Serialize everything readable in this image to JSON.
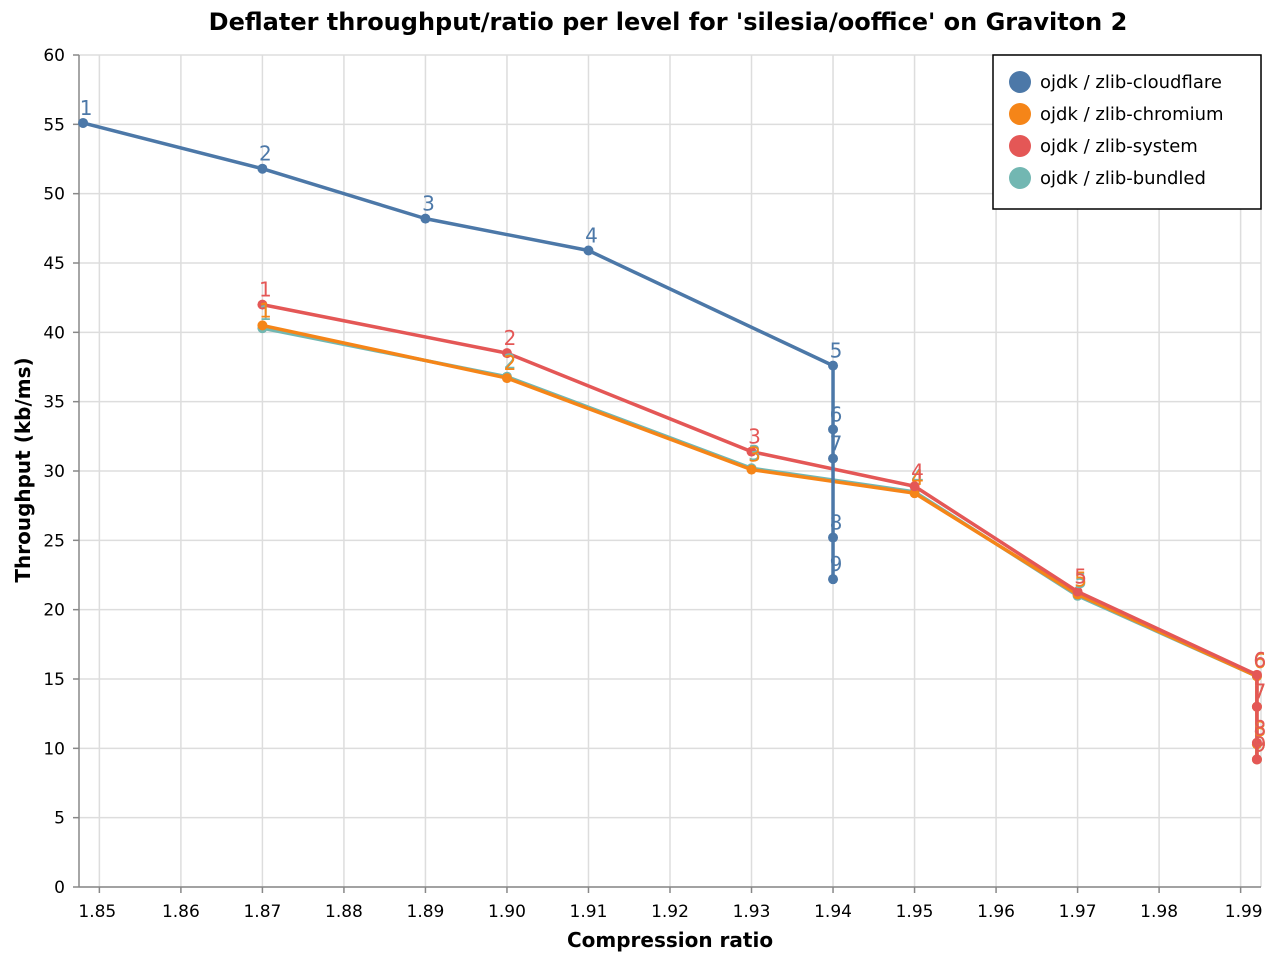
{
  "chart_data": {
    "type": "line",
    "title": "Deflater throughput/ratio per level for 'silesia/ooffice' on Graviton 2",
    "xlabel": "Compression ratio",
    "ylabel": "Throughput (kb/ms)",
    "xlim": [
      1.8475,
      1.9925
    ],
    "ylim": [
      0,
      60
    ],
    "x_ticks": [
      1.85,
      1.86,
      1.87,
      1.88,
      1.89,
      1.9,
      1.91,
      1.92,
      1.93,
      1.94,
      1.95,
      1.96,
      1.97,
      1.98,
      1.99
    ],
    "x_tick_labels": [
      "1.85",
      "1.86",
      "1.87",
      "1.88",
      "1.89",
      "1.90",
      "1.91",
      "1.92",
      "1.93",
      "1.94",
      "1.95",
      "1.96",
      "1.97",
      "1.98",
      "1.99"
    ],
    "y_ticks": [
      0,
      5,
      10,
      15,
      20,
      25,
      30,
      35,
      40,
      45,
      50,
      55,
      60
    ],
    "grid": true,
    "legend_position": "top-right",
    "series": [
      {
        "name": "ojdk / zlib-cloudflare",
        "color": "#4c78a8",
        "points": [
          {
            "level": "1",
            "x": 1.848,
            "y": 55.1
          },
          {
            "level": "2",
            "x": 1.87,
            "y": 51.8
          },
          {
            "level": "3",
            "x": 1.89,
            "y": 48.2
          },
          {
            "level": "4",
            "x": 1.91,
            "y": 45.9
          },
          {
            "level": "5",
            "x": 1.94,
            "y": 37.6
          },
          {
            "level": "6",
            "x": 1.94,
            "y": 33.0
          },
          {
            "level": "7",
            "x": 1.94,
            "y": 30.9
          },
          {
            "level": "8",
            "x": 1.94,
            "y": 25.2
          },
          {
            "level": "9",
            "x": 1.94,
            "y": 22.2
          }
        ]
      },
      {
        "name": "ojdk / zlib-chromium",
        "color": "#f58518",
        "points": [
          {
            "level": "1",
            "x": 1.87,
            "y": 40.5
          },
          {
            "level": "2",
            "x": 1.9,
            "y": 36.7
          },
          {
            "level": "3",
            "x": 1.93,
            "y": 30.1
          },
          {
            "level": "4",
            "x": 1.95,
            "y": 28.4
          },
          {
            "level": "5",
            "x": 1.97,
            "y": 21.1
          },
          {
            "level": "6",
            "x": 1.992,
            "y": 15.2
          },
          {
            "level": "7",
            "x": 1.992,
            "y": 13.0
          },
          {
            "level": "8",
            "x": 1.992,
            "y": 10.3
          },
          {
            "level": "9",
            "x": 1.992,
            "y": 9.2
          }
        ]
      },
      {
        "name": "ojdk / zlib-system",
        "color": "#e45756",
        "points": [
          {
            "level": "1",
            "x": 1.87,
            "y": 42.0
          },
          {
            "level": "2",
            "x": 1.9,
            "y": 38.5
          },
          {
            "level": "3",
            "x": 1.93,
            "y": 31.4
          },
          {
            "level": "4",
            "x": 1.95,
            "y": 28.9
          },
          {
            "level": "5",
            "x": 1.97,
            "y": 21.3
          },
          {
            "level": "6",
            "x": 1.992,
            "y": 15.3
          },
          {
            "level": "7",
            "x": 1.992,
            "y": 13.0
          },
          {
            "level": "8",
            "x": 1.992,
            "y": 10.4
          },
          {
            "level": "9",
            "x": 1.992,
            "y": 9.2
          }
        ]
      },
      {
        "name": "ojdk / zlib-bundled",
        "color": "#72b7b2",
        "points": [
          {
            "level": "1",
            "x": 1.87,
            "y": 40.3
          },
          {
            "level": "2",
            "x": 1.9,
            "y": 36.8
          },
          {
            "level": "3",
            "x": 1.93,
            "y": 30.2
          },
          {
            "level": "4",
            "x": 1.95,
            "y": 28.5
          },
          {
            "level": "5",
            "x": 1.97,
            "y": 21.0
          },
          {
            "level": "6",
            "x": 1.992,
            "y": 15.2
          },
          {
            "level": "7",
            "x": 1.992,
            "y": 13.0
          },
          {
            "level": "8",
            "x": 1.992,
            "y": 10.3
          },
          {
            "level": "9",
            "x": 1.992,
            "y": 9.2
          }
        ]
      }
    ],
    "draw_order": [
      3,
      1,
      2,
      0
    ]
  }
}
